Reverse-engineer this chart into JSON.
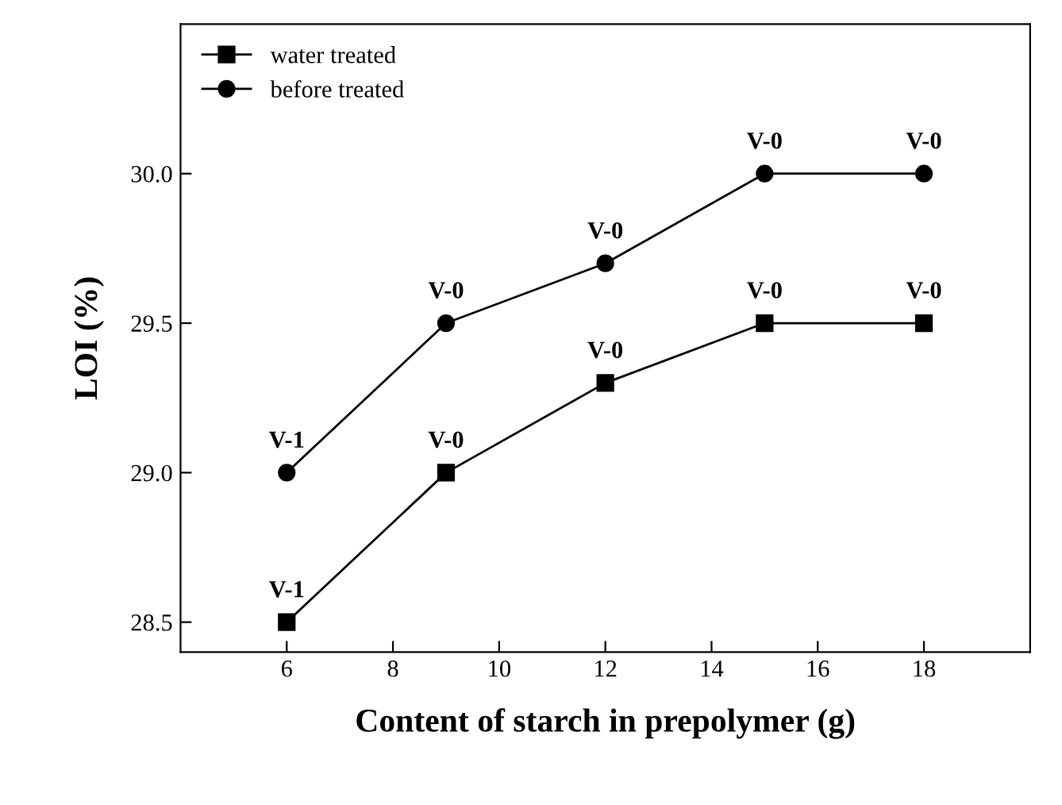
{
  "chart_data": {
    "type": "line",
    "xlabel": "Content of starch in prepolymer (g)",
    "ylabel": "LOI (%)",
    "x": [
      6,
      9,
      12,
      15,
      18
    ],
    "series": [
      {
        "name": "water treated",
        "color": "#000000",
        "values": [
          28.5,
          29.0,
          29.3,
          29.5,
          29.5
        ],
        "marker": "square"
      },
      {
        "name": "before treated",
        "color": "#000000",
        "values": [
          29.0,
          29.5,
          29.7,
          30.0,
          30.0
        ],
        "marker": "circle"
      }
    ],
    "xlim": [
      4,
      20
    ],
    "xticks": [
      6,
      8,
      10,
      12,
      14,
      16,
      18
    ],
    "ylim": [
      28.4,
      30.5
    ],
    "yticks": [
      28.5,
      {
        "value": 29,
        "label": "29.0"
      },
      29.5,
      {
        "value": 30,
        "label": "30.0"
      }
    ],
    "grid": false,
    "legend": "top left",
    "line_style": "solid",
    "annotations": [
      {
        "text": "V-1",
        "x": 6,
        "y": 28.5
      },
      {
        "text": "V-0",
        "x": 9,
        "y": 29.0
      },
      {
        "text": "V-0",
        "x": 12,
        "y": 29.3
      },
      {
        "text": "V-0",
        "x": 15,
        "y": 29.5
      },
      {
        "text": "V-0",
        "x": 18,
        "y": 29.5
      },
      {
        "text": "V-1",
        "x": 6,
        "y": 29.0
      },
      {
        "text": "V-0",
        "x": 9,
        "y": 29.5
      },
      {
        "text": "V-0",
        "x": 12,
        "y": 29.7
      },
      {
        "text": "V-0",
        "x": 15,
        "y": 30.0
      },
      {
        "text": "V-0",
        "x": 18,
        "y": 30.0
      }
    ]
  }
}
